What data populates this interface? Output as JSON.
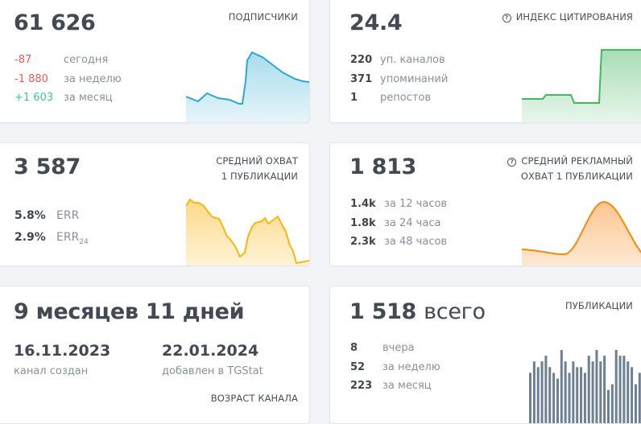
{
  "cards": {
    "subscribers": {
      "value": "61 626",
      "label": "ПОДПИСЧИКИ",
      "rows": [
        {
          "num": "-87",
          "text": "сегодня",
          "tone": "negative"
        },
        {
          "num": "-1 880",
          "text": "за неделю",
          "tone": "negative"
        },
        {
          "num": "+1 603",
          "text": "за месяц",
          "tone": "positive"
        }
      ],
      "chart_color": "#2aa8d2"
    },
    "citation": {
      "value": "24.4",
      "label": "ИНДЕКС ЦИТИРОВАНИЯ",
      "help_icon": "?",
      "rows": [
        {
          "num": "220",
          "text": "уп. каналов"
        },
        {
          "num": "371",
          "text": "упоминаний"
        },
        {
          "num": "1",
          "text": "репостов"
        }
      ],
      "chart_color": "#3cbd5a"
    },
    "reach": {
      "value": "3 587",
      "label_line1": "СРЕДНИЙ ОХВАТ",
      "label_line2": "1 ПУБЛИКАЦИИ",
      "rows": [
        {
          "num": "5.8%",
          "text": "ERR"
        },
        {
          "num": "2.9%",
          "text": "ERR",
          "sub": "24"
        }
      ],
      "chart_color": "#f6b70f"
    },
    "ad_reach": {
      "value": "1 813",
      "label_line1": "СРЕДНИЙ РЕКЛАМНЫЙ",
      "label_line2": "ОХВАТ 1 ПУБЛИКАЦИИ",
      "help_icon": "?",
      "rows": [
        {
          "num": "1.4k",
          "text": "за 12 часов"
        },
        {
          "num": "1.8k",
          "text": "за 24 часа"
        },
        {
          "num": "2.3k",
          "text": "за 48 часов"
        }
      ],
      "chart_color": "#f7890f"
    },
    "age": {
      "value": "9 месяцев 11 дней",
      "created_date": "16.11.2023",
      "created_label": "канал создан",
      "added_date": "22.01.2024",
      "added_label": "добавлен в TGStat",
      "label": "ВОЗРАСТ КАНАЛА"
    },
    "posts": {
      "value": "1 518",
      "value_suffix": "всего",
      "label": "ПУБЛИКАЦИИ",
      "rows": [
        {
          "num": "8",
          "text": "вчера"
        },
        {
          "num": "52",
          "text": "за неделю"
        },
        {
          "num": "223",
          "text": "за месяц"
        }
      ],
      "chart_color": "#6c7f93"
    }
  },
  "chart_data": [
    {
      "type": "area",
      "name": "subscribers-sparkline",
      "values": [
        62,
        60,
        58,
        61,
        65,
        63,
        61,
        60,
        59,
        58,
        57,
        56,
        88,
        96,
        94,
        92,
        90,
        88,
        86,
        84,
        82,
        80,
        78,
        76,
        75,
        74,
        72,
        71,
        70
      ]
    },
    {
      "type": "area",
      "name": "citation-sparkline",
      "values": [
        10,
        10,
        10,
        12,
        12,
        12,
        12,
        8,
        8,
        8,
        8,
        8,
        40,
        40,
        40,
        40,
        40,
        40,
        40,
        40
      ]
    },
    {
      "type": "area",
      "name": "reach-sparkline",
      "values": [
        80,
        85,
        83,
        83,
        80,
        75,
        70,
        68,
        68,
        60,
        50,
        42,
        35,
        25,
        28,
        50,
        65,
        70,
        72,
        75,
        70,
        73,
        76,
        68,
        55,
        40,
        25,
        26
      ]
    },
    {
      "type": "area",
      "name": "ad-reach-sparkline",
      "values": [
        20,
        19,
        18,
        17,
        16,
        16,
        30,
        55,
        80,
        88,
        75,
        50,
        30,
        20
      ]
    },
    {
      "type": "bar",
      "name": "posts-bars",
      "values": [
        6,
        8,
        7,
        8,
        9,
        7,
        6,
        5,
        10,
        8,
        6,
        8,
        7,
        7,
        6,
        9,
        8,
        10,
        8,
        9,
        3,
        4,
        10,
        9,
        9,
        8,
        7,
        4,
        6,
        8
      ]
    }
  ]
}
